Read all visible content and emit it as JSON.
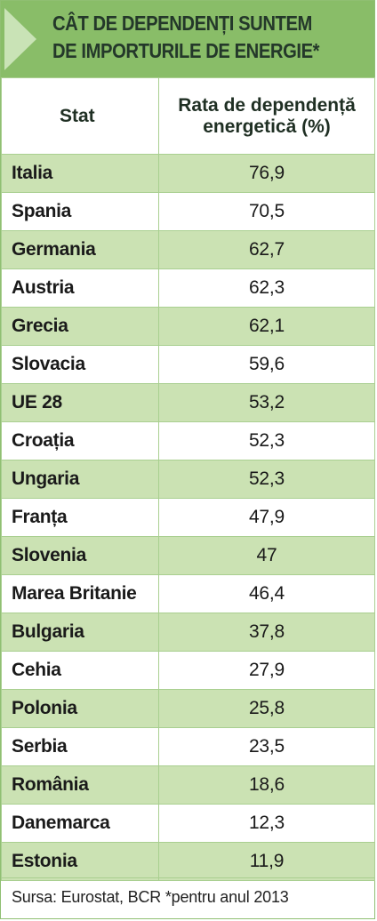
{
  "title": {
    "line1": "CÂT DE DEPENDENȚI SUNTEM",
    "line2": "DE IMPORTURILE DE ENERGIE*"
  },
  "columns": {
    "state": "Stat",
    "rate_line1": "Rata de dependență",
    "rate_line2": "energetică (%)"
  },
  "colors": {
    "header_green": "#89bd68",
    "row_green": "#cbe2b3",
    "border_green": "#a9cf90",
    "arrow_light": "#c9e3b6"
  },
  "chart_data": {
    "type": "table",
    "title": "CÂT DE DEPENDENȚI SUNTEM DE IMPORTURILE DE ENERGIE*",
    "columns": [
      "Stat",
      "Rata de dependență energetică (%)"
    ],
    "rows": [
      {
        "state": "Italia",
        "value": "76,9"
      },
      {
        "state": "Spania",
        "value": "70,5"
      },
      {
        "state": "Germania",
        "value": "62,7"
      },
      {
        "state": "Austria",
        "value": "62,3"
      },
      {
        "state": "Grecia",
        "value": "62,1"
      },
      {
        "state": "Slovacia",
        "value": "59,6"
      },
      {
        "state": "UE 28",
        "value": "53,2"
      },
      {
        "state": "Croația",
        "value": "52,3"
      },
      {
        "state": "Ungaria",
        "value": "52,3"
      },
      {
        "state": "Franța",
        "value": "47,9"
      },
      {
        "state": "Slovenia",
        "value": "47"
      },
      {
        "state": "Marea Britanie",
        "value": "46,4"
      },
      {
        "state": "Bulgaria",
        "value": "37,8"
      },
      {
        "state": "Cehia",
        "value": "27,9"
      },
      {
        "state": "Polonia",
        "value": "25,8"
      },
      {
        "state": "Serbia",
        "value": "23,5"
      },
      {
        "state": "România",
        "value": "18,6"
      },
      {
        "state": "Danemarca",
        "value": "12,3"
      },
      {
        "state": "Estonia",
        "value": "11,9"
      }
    ]
  },
  "source": "Sursa: Eurostat, BCR *pentru anul 2013"
}
